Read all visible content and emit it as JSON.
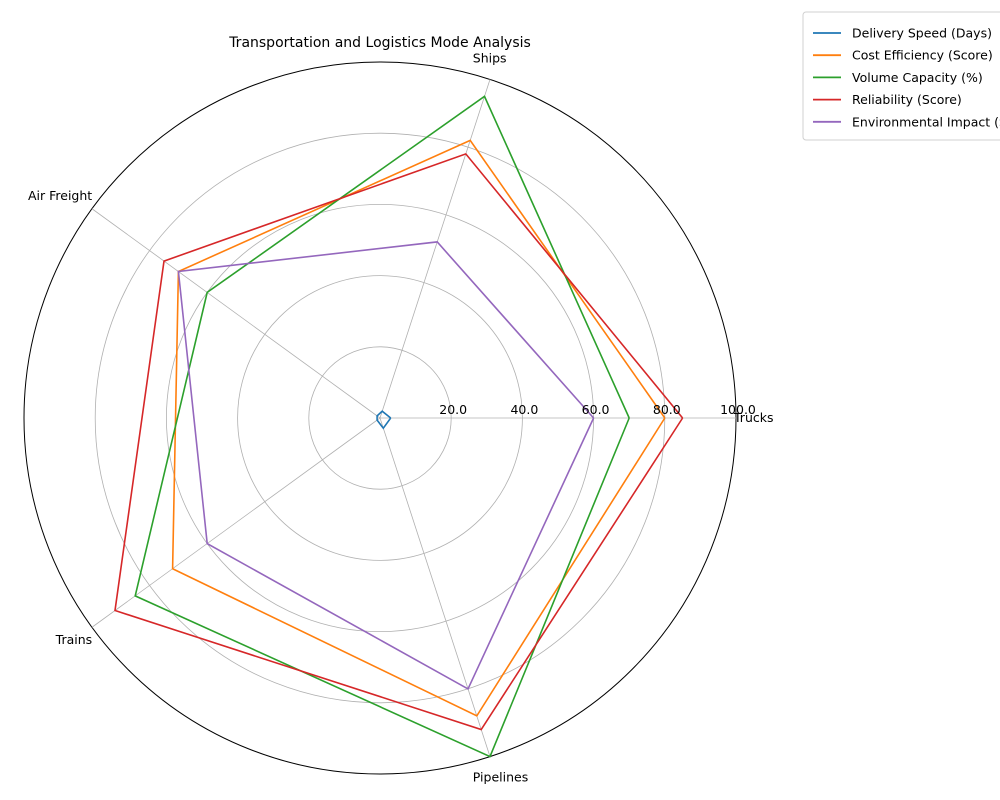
{
  "chart_data": {
    "type": "radar",
    "title": "Transportation and Logistics Mode Analysis",
    "categories": [
      "Trucks",
      "Ships",
      "Air Freight",
      "Trains",
      "Pipelines"
    ],
    "rlim": [
      0,
      100
    ],
    "rticks": [
      "20.0",
      "40.0",
      "60.0",
      "80.0",
      "100.0"
    ],
    "grid": true,
    "legend_position": "top-right outside",
    "series": [
      {
        "name": "Delivery Speed (Days)",
        "color": "#1f77b4",
        "values": [
          3,
          2,
          1,
          1,
          3
        ]
      },
      {
        "name": "Cost Efficiency (Score)",
        "color": "#ff7f0e",
        "values": [
          80,
          82,
          70,
          72,
          88
        ]
      },
      {
        "name": "Volume Capacity (%)",
        "color": "#2ca02c",
        "values": [
          70,
          95,
          60,
          85,
          100
        ]
      },
      {
        "name": "Reliability (Score)",
        "color": "#d62728",
        "values": [
          85,
          78,
          75,
          92,
          92
        ]
      },
      {
        "name": "Environmental Impact (Score)",
        "color": "#9467bd",
        "values": [
          60,
          52,
          70,
          60,
          80
        ]
      }
    ]
  }
}
